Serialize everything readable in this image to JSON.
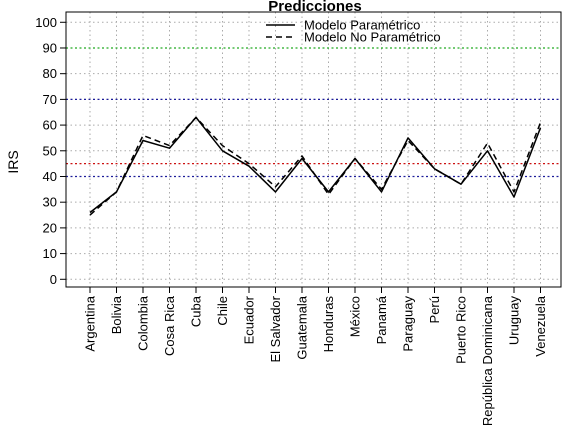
{
  "chart_data": {
    "type": "line",
    "title": "Predicciones",
    "xlabel": "",
    "ylabel": "IRS",
    "ylim": [
      -3,
      104
    ],
    "yticks": [
      0,
      10,
      20,
      30,
      40,
      50,
      60,
      70,
      80,
      90,
      100
    ],
    "grid": true,
    "legend_position": "top-center",
    "categories": [
      "Argentina",
      "Bolivia",
      "Colombia",
      "Cosa Rica",
      "Cuba",
      "Chile",
      "Ecuador",
      "El Salvador",
      "Guatemala",
      "Honduras",
      "México",
      "Panamá",
      "Paraguay",
      "Perú",
      "Puerto Rico",
      "República Dominicana",
      "Uruguay",
      "Venezuela"
    ],
    "series": [
      {
        "name": "Modelo Paramétrico",
        "style": "solid",
        "color": "#000000",
        "values": [
          26,
          34,
          54,
          51,
          63,
          50,
          44,
          34,
          47,
          34,
          47,
          34,
          55,
          43,
          37,
          50,
          32,
          59
        ]
      },
      {
        "name": "Modelo No Paramétrico",
        "style": "dashed",
        "color": "#000000",
        "values": [
          25,
          34,
          56,
          52,
          63,
          52,
          45,
          36,
          48,
          33,
          47,
          35,
          54,
          43,
          37,
          53,
          34,
          61
        ]
      }
    ],
    "reference_lines": [
      {
        "y": 90,
        "color": "#22aa22"
      },
      {
        "y": 70,
        "color": "#1c1c9a"
      },
      {
        "y": 45,
        "color": "#cc1111"
      },
      {
        "y": 40,
        "color": "#1c1c9a"
      }
    ]
  }
}
